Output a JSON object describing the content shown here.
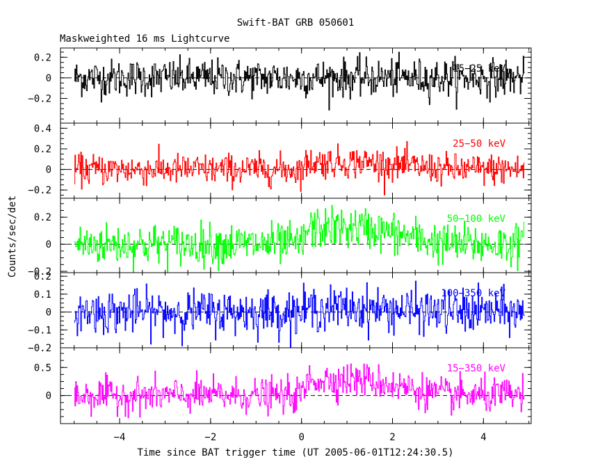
{
  "chart_data": {
    "type": "line",
    "title": "Swift-BAT GRB 050601",
    "subtitle": "Maskweighted 16 ms Lightcurve",
    "xlabel": "Time since BAT trigger time (UT 2005-06-01T12:24:30.5)",
    "ylabel": "Counts/sec/det",
    "xlim": [
      -5.3,
      5.05
    ],
    "xticks": [
      -4,
      -2,
      0,
      2,
      4
    ],
    "xtick_labels": [
      "−4",
      "−2",
      "0",
      "2",
      "4"
    ],
    "data_x_range": [
      -5.0,
      4.9
    ],
    "bin_width_s": 0.016,
    "grid": false,
    "panels": [
      {
        "label": "15−25 keV",
        "color": "#000000",
        "ylim": [
          -0.44,
          0.29
        ],
        "yticks": [
          -0.2,
          0,
          0.2
        ],
        "ytick_labels": [
          "−0.2",
          "0",
          "0.2"
        ],
        "noise_sd": 0.09,
        "pulse_amp": 0.0
      },
      {
        "label": "25−50 keV",
        "color": "#ff0000",
        "ylim": [
          -0.28,
          0.45
        ],
        "yticks": [
          -0.2,
          0,
          0.2,
          0.4
        ],
        "ytick_labels": [
          "−0.2",
          "0",
          "0.2",
          "0.4"
        ],
        "noise_sd": 0.075,
        "pulse_amp": 0.07
      },
      {
        "label": "50−100 keV",
        "color": "#00ff00",
        "ylim": [
          -0.21,
          0.34
        ],
        "yticks": [
          -0.2,
          0,
          0.2
        ],
        "ytick_labels": [
          "−0.2",
          "0",
          "0.2"
        ],
        "noise_sd": 0.075,
        "pulse_amp": 0.12
      },
      {
        "label": "100−350 keV",
        "color": "#0000ff",
        "ylim": [
          -0.2,
          0.22
        ],
        "yticks": [
          -0.2,
          -0.1,
          0,
          0.1,
          0.2
        ],
        "ytick_labels": [
          "−0.2",
          "−0.1",
          "0",
          "0.1",
          "0.2"
        ],
        "noise_sd": 0.06,
        "pulse_amp": 0.02
      },
      {
        "label": "15−350 keV",
        "color": "#ff00ff",
        "ylim": [
          -0.5,
          0.85
        ],
        "yticks": [
          0,
          0.5
        ],
        "ytick_labels": [
          "0",
          "0.5"
        ],
        "noise_sd": 0.15,
        "pulse_amp": 0.28
      }
    ]
  }
}
